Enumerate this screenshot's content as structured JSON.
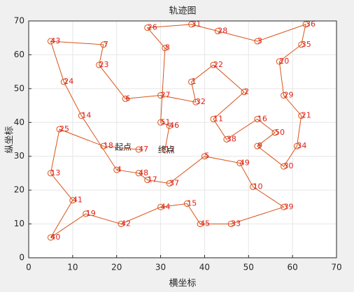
{
  "chart_data": {
    "type": "line",
    "title": "轨迹图",
    "x_label": "横坐标",
    "y_label": "纵坐标",
    "series": [
      {
        "color": "#d95319",
        "label_color": "#e0201b",
        "point_labels": [
          "47",
          "18",
          "25",
          "13",
          "41",
          "40",
          "19",
          "42",
          "44",
          "15",
          "45",
          "33",
          "39",
          "10",
          "49",
          "5",
          "37",
          "17",
          "48",
          "4",
          "14",
          "24",
          "43",
          "7",
          "23",
          "6",
          "27",
          "32",
          "1",
          "22",
          "2",
          "11",
          "38",
          "16",
          "50",
          "9",
          "30",
          "34",
          "21",
          "29",
          "20",
          "35",
          "36",
          "3",
          "28",
          "31",
          "26",
          "8",
          "51",
          "46",
          "12"
        ],
        "x": [
          25,
          17,
          7,
          5,
          10,
          5,
          13,
          21,
          30,
          36,
          39,
          46,
          58,
          51,
          48,
          40,
          32,
          27,
          25,
          20,
          12,
          8,
          5,
          17,
          16,
          22,
          30,
          38,
          37,
          42,
          49,
          42,
          45,
          52,
          56,
          52,
          58,
          61,
          62,
          58,
          57,
          62,
          63,
          52,
          43,
          37,
          27,
          31,
          30,
          32,
          31
        ],
        "values": [
          32,
          33,
          38,
          25,
          17,
          6,
          13,
          10,
          15,
          16,
          10,
          10,
          15,
          21,
          28,
          30,
          22,
          23,
          25,
          26,
          42,
          52,
          64,
          63,
          57,
          47,
          48,
          46,
          52,
          57,
          49,
          41,
          35,
          41,
          37,
          33,
          27,
          33,
          42,
          48,
          58,
          63,
          69,
          64,
          67,
          69,
          68,
          62,
          40,
          39,
          32
        ]
      }
    ],
    "annotations": [
      "起点",
      "终点"
    ],
    "xlim": [
      0,
      70
    ],
    "ylim": [
      0,
      70
    ],
    "xticks": [
      0,
      10,
      20,
      30,
      40,
      50,
      60,
      70
    ],
    "yticks": [
      0,
      10,
      20,
      30,
      40,
      50,
      60,
      70
    ],
    "grid": true
  }
}
